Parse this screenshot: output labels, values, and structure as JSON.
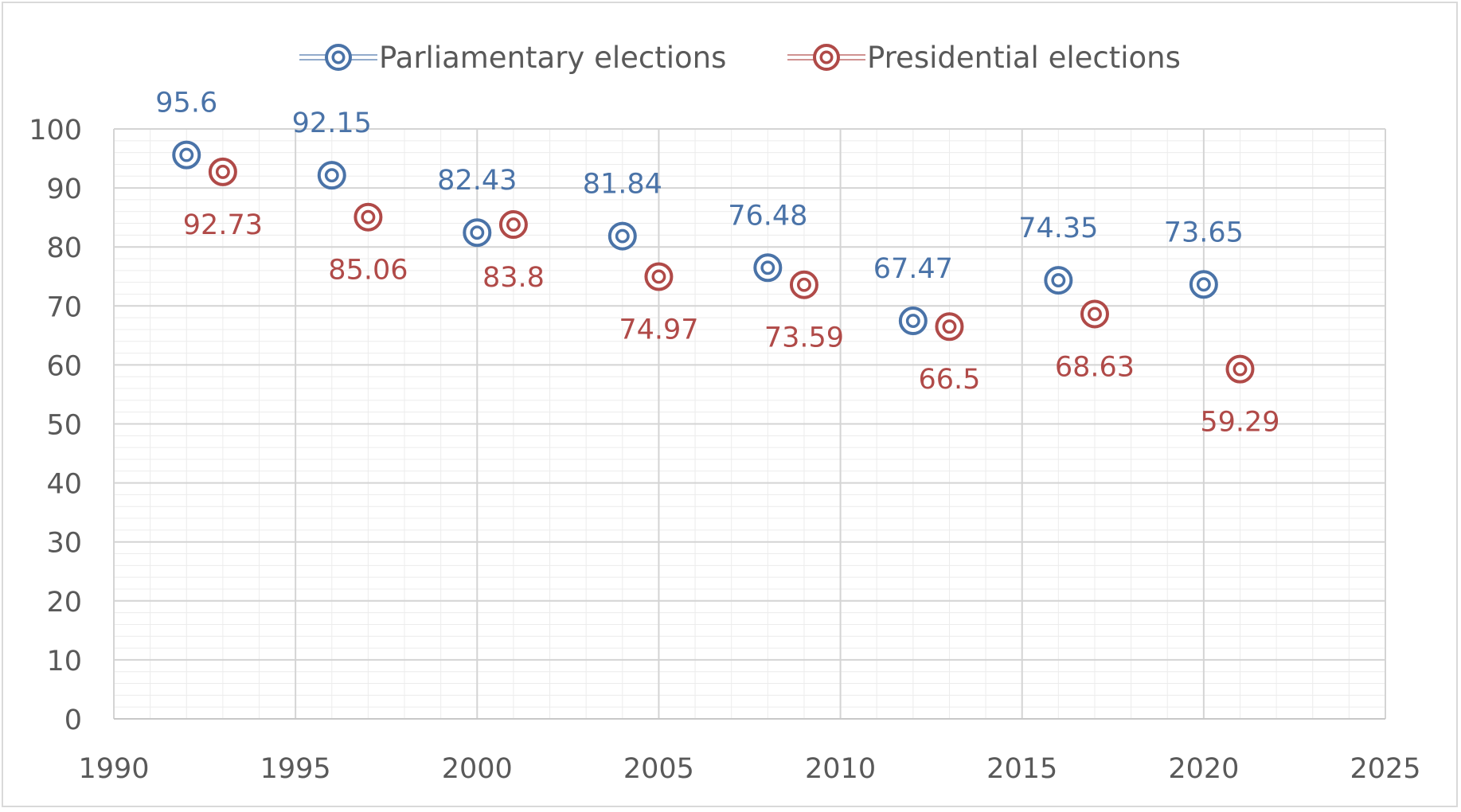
{
  "chart_data": {
    "type": "scatter",
    "title": "",
    "xlabel": "",
    "ylabel": "",
    "xlim": [
      1990,
      2025
    ],
    "ylim": [
      0,
      100
    ],
    "x_ticks": [
      "1990",
      "1995",
      "2000",
      "2005",
      "2010",
      "2015",
      "2020",
      "2025"
    ],
    "y_ticks": [
      "0",
      "10",
      "20",
      "30",
      "40",
      "50",
      "60",
      "70",
      "80",
      "90",
      "100"
    ],
    "grid": true,
    "legend_position": "top-center",
    "series": [
      {
        "name": "Parliamentary elections",
        "color": "#4a73a8",
        "label_position": "above",
        "points": [
          {
            "x": 1992,
            "y": 95.6,
            "label": "95.6"
          },
          {
            "x": 1996,
            "y": 92.15,
            "label": "92.15"
          },
          {
            "x": 2000,
            "y": 82.43,
            "label": "82.43"
          },
          {
            "x": 2004,
            "y": 81.84,
            "label": "81.84"
          },
          {
            "x": 2008,
            "y": 76.48,
            "label": "76.48"
          },
          {
            "x": 2012,
            "y": 67.47,
            "label": "67.47"
          },
          {
            "x": 2016,
            "y": 74.35,
            "label": "74.35"
          },
          {
            "x": 2020,
            "y": 73.65,
            "label": "73.65"
          }
        ]
      },
      {
        "name": "Presidential elections",
        "color": "#b04a48",
        "label_position": "below",
        "points": [
          {
            "x": 1993,
            "y": 92.73,
            "label": "92.73"
          },
          {
            "x": 1997,
            "y": 85.06,
            "label": "85.06"
          },
          {
            "x": 2001,
            "y": 83.8,
            "label": "83.8"
          },
          {
            "x": 2005,
            "y": 74.97,
            "label": "74.97"
          },
          {
            "x": 2009,
            "y": 73.59,
            "label": "73.59"
          },
          {
            "x": 2013,
            "y": 66.5,
            "label": "66.5"
          },
          {
            "x": 2017,
            "y": 68.63,
            "label": "68.63"
          },
          {
            "x": 2021,
            "y": 59.29,
            "label": "59.29"
          }
        ]
      }
    ]
  }
}
